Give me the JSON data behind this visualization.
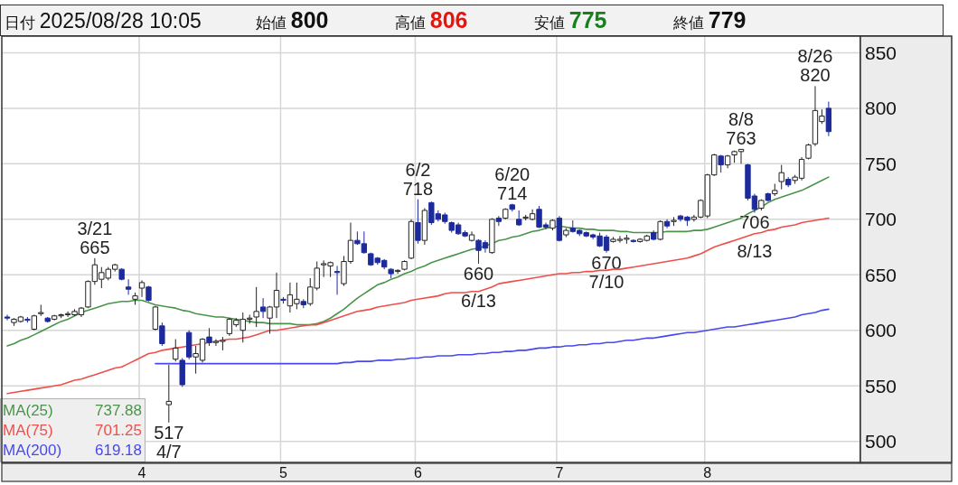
{
  "chart_data": {
    "type": "candlestick",
    "title": "日付 2025/08/28 10:05",
    "annotations": [
      "始値 800",
      "高値 806",
      "安値 775",
      "終値 779",
      {
        "text": "3/21\n665",
        "y": 665
      },
      {
        "text": "517\n4/7",
        "y": 517
      },
      {
        "text": "6/2\n718",
        "y": 718
      },
      {
        "text": "660\n6/13",
        "y": 660
      },
      {
        "text": "6/20\n714",
        "y": 714
      },
      {
        "text": "670\n7/10",
        "y": 670
      },
      {
        "text": "8/8\n763",
        "y": 763
      },
      {
        "text": "706\n8/13",
        "y": 706
      },
      {
        "text": "8/26\n820",
        "y": 820
      }
    ],
    "categories": [
      null,
      null,
      null,
      null,
      null,
      null,
      null,
      null,
      null,
      null,
      null,
      null,
      null,
      null,
      null,
      null,
      null,
      null,
      null,
      null,
      "4",
      null,
      null,
      null,
      null,
      null,
      null,
      null,
      null,
      null,
      null,
      null,
      null,
      null,
      null,
      null,
      null,
      null,
      null,
      null,
      null,
      "5",
      null,
      null,
      null,
      null,
      null,
      null,
      null,
      null,
      null,
      null,
      null,
      null,
      null,
      null,
      null,
      null,
      null,
      null,
      null,
      "6",
      null,
      null,
      null,
      null,
      null,
      null,
      null,
      null,
      null,
      null,
      null,
      null,
      null,
      null,
      null,
      null,
      null,
      null,
      null,
      null,
      "7",
      null,
      null,
      null,
      null,
      null,
      null,
      null,
      null,
      null,
      null,
      null,
      null,
      null,
      null,
      null,
      null,
      null,
      null,
      null,
      null,
      null,
      "8",
      null,
      null,
      null,
      null,
      null,
      null,
      null,
      null,
      null,
      null,
      null,
      null,
      null,
      null,
      null,
      null,
      null,
      null
    ],
    "ohlc": [
      [
        612,
        614,
        609,
        611
      ],
      [
        607,
        611,
        604,
        610
      ],
      [
        608,
        613,
        607,
        612
      ],
      [
        610,
        612,
        607,
        609
      ],
      [
        601,
        614,
        600,
        613
      ],
      [
        615,
        623,
        613,
        616
      ],
      [
        611,
        612,
        607,
        608
      ],
      [
        610,
        614,
        609,
        613
      ],
      [
        613,
        615,
        611,
        614
      ],
      [
        614,
        617,
        612,
        615
      ],
      [
        614,
        619,
        613,
        617
      ],
      [
        614,
        621,
        612,
        620
      ],
      [
        621,
        645,
        620,
        644
      ],
      [
        644,
        665,
        641,
        659
      ],
      [
        646,
        657,
        638,
        652
      ],
      [
        647,
        657,
        645,
        655
      ],
      [
        655,
        660,
        653,
        659
      ],
      [
        655,
        656,
        645,
        646
      ],
      [
        639,
        646,
        632,
        637
      ],
      [
        628,
        634,
        623,
        631
      ],
      [
        638,
        645,
        630,
        643
      ],
      [
        639,
        640,
        626,
        627
      ],
      [
        601,
        622,
        600,
        621
      ],
      [
        604,
        607,
        586,
        588
      ],
      [
        533,
        569,
        517,
        536
      ],
      [
        574,
        592,
        572,
        584
      ],
      [
        573,
        575,
        549,
        551
      ],
      [
        598,
        600,
        574,
        576
      ],
      [
        576,
        586,
        561,
        579
      ],
      [
        573,
        593,
        571,
        592
      ],
      [
        594,
        602,
        586,
        589
      ],
      [
        589,
        592,
        586,
        590
      ],
      [
        590,
        594,
        582,
        591
      ],
      [
        597,
        611,
        595,
        610
      ],
      [
        605,
        611,
        603,
        609
      ],
      [
        600,
        616,
        589,
        610
      ],
      [
        610,
        614,
        606,
        611
      ],
      [
        612,
        639,
        603,
        617
      ],
      [
        621,
        629,
        611,
        617
      ],
      [
        611,
        622,
        597,
        621
      ],
      [
        621,
        652,
        611,
        636
      ],
      [
        628,
        630,
        624,
        627
      ],
      [
        622,
        643,
        616,
        632
      ],
      [
        624,
        643,
        619,
        628
      ],
      [
        626,
        628,
        620,
        623
      ],
      [
        624,
        647,
        622,
        639
      ],
      [
        638,
        662,
        636,
        656
      ],
      [
        659,
        663,
        648,
        660
      ],
      [
        658,
        662,
        648,
        661
      ],
      [
        653,
        658,
        632,
        652
      ],
      [
        642,
        667,
        640,
        662
      ],
      [
        662,
        697,
        660,
        681
      ],
      [
        681,
        689,
        677,
        678
      ],
      [
        678,
        689,
        669,
        670
      ],
      [
        669,
        670,
        658,
        659
      ],
      [
        665,
        666,
        659,
        661
      ],
      [
        663,
        664,
        655,
        657
      ],
      [
        655,
        656,
        647,
        651
      ],
      [
        653,
        655,
        651,
        654
      ],
      [
        655,
        663,
        654,
        662
      ],
      [
        665,
        700,
        664,
        698
      ],
      [
        697,
        718,
        678,
        681
      ],
      [
        681,
        710,
        677,
        708
      ],
      [
        715,
        716,
        695,
        697
      ],
      [
        705,
        708,
        698,
        700
      ],
      [
        704,
        706,
        696,
        698
      ],
      [
        697,
        698,
        688,
        690
      ],
      [
        695,
        697,
        686,
        687
      ],
      [
        688,
        690,
        684,
        685
      ],
      [
        681,
        689,
        680,
        686
      ],
      [
        681,
        682,
        660,
        672
      ],
      [
        679,
        681,
        670,
        674
      ],
      [
        670,
        701,
        669,
        700
      ],
      [
        701,
        703,
        694,
        698
      ],
      [
        701,
        710,
        700,
        709
      ],
      [
        713,
        714,
        707,
        709
      ],
      [
        700,
        708,
        694,
        695
      ],
      [
        701,
        704,
        699,
        702
      ],
      [
        700,
        709,
        699,
        705
      ],
      [
        709,
        712,
        692,
        693
      ],
      [
        695,
        697,
        691,
        693
      ],
      [
        692,
        700,
        690,
        699
      ],
      [
        701,
        703,
        680,
        681
      ],
      [
        686,
        692,
        684,
        690
      ],
      [
        692,
        699,
        688,
        689
      ],
      [
        690,
        691,
        685,
        687
      ],
      [
        688,
        689,
        684,
        685
      ],
      [
        686,
        687,
        682,
        684
      ],
      [
        685,
        688,
        675,
        676
      ],
      [
        684,
        686,
        670,
        672
      ],
      [
        680,
        684,
        679,
        682
      ],
      [
        681,
        685,
        679,
        682
      ],
      [
        682,
        686,
        678,
        683
      ],
      [
        681,
        682,
        679,
        680
      ],
      [
        680,
        683,
        679,
        682
      ],
      [
        681,
        686,
        680,
        685
      ],
      [
        688,
        690,
        681,
        682
      ],
      [
        682,
        699,
        681,
        698
      ],
      [
        698,
        700,
        692,
        694
      ],
      [
        698,
        702,
        694,
        699
      ],
      [
        703,
        704,
        698,
        700
      ],
      [
        702,
        703,
        694,
        699
      ],
      [
        700,
        704,
        698,
        702
      ],
      [
        702,
        718,
        701,
        717
      ],
      [
        703,
        741,
        701,
        740
      ],
      [
        740,
        759,
        739,
        758
      ],
      [
        757,
        758,
        742,
        749
      ],
      [
        749,
        758,
        746,
        757
      ],
      [
        758,
        762,
        751,
        761
      ],
      [
        761,
        763,
        750,
        763
      ],
      [
        749,
        750,
        717,
        719
      ],
      [
        721,
        723,
        706,
        709
      ],
      [
        710,
        718,
        708,
        717
      ],
      [
        723,
        724,
        716,
        717
      ],
      [
        723,
        732,
        721,
        726
      ],
      [
        734,
        749,
        727,
        742
      ],
      [
        736,
        738,
        729,
        731
      ],
      [
        735,
        740,
        732,
        738
      ],
      [
        737,
        756,
        735,
        754
      ],
      [
        755,
        768,
        754,
        767
      ],
      [
        768,
        820,
        766,
        798
      ],
      [
        788,
        799,
        786,
        793
      ],
      [
        800,
        806,
        775,
        779
      ]
    ],
    "colors": [
      "#1c2a9c",
      "#ffffff",
      "#ffffff",
      "#1c2a9c",
      "#ffffff",
      "#ffffff",
      "#1c2a9c",
      "#ffffff",
      "#ffffff",
      "#ffffff",
      "#ffffff",
      "#ffffff",
      "#ffffff",
      "#ffffff",
      "#ffffff",
      "#ffffff",
      "#ffffff",
      "#1c2a9c",
      "#1c2a9c",
      "#ffffff",
      "#ffffff",
      "#1c2a9c",
      "#ffffff",
      "#1c2a9c",
      "#ffffff",
      "#ffffff",
      "#1c2a9c",
      "#1c2a9c",
      "#ffffff",
      "#ffffff",
      "#1c2a9c",
      "#ffffff",
      "#ffffff",
      "#ffffff",
      "#ffffff",
      "#ffffff",
      "#ffffff",
      "#ffffff",
      "#1c2a9c",
      "#ffffff",
      "#ffffff",
      "#1c2a9c",
      "#ffffff",
      "#ffffff",
      "#1c2a9c",
      "#ffffff",
      "#ffffff",
      "#ffffff",
      "#ffffff",
      "#1c2a9c",
      "#ffffff",
      "#ffffff",
      "#1c2a9c",
      "#1c2a9c",
      "#1c2a9c",
      "#1c2a9c",
      "#1c2a9c",
      "#1c2a9c",
      "#ffffff",
      "#ffffff",
      "#ffffff",
      "#1c2a9c",
      "#ffffff",
      "#1c2a9c",
      "#1c2a9c",
      "#1c2a9c",
      "#1c2a9c",
      "#1c2a9c",
      "#1c2a9c",
      "#ffffff",
      "#1c2a9c",
      "#1c2a9c",
      "#ffffff",
      "#1c2a9c",
      "#ffffff",
      "#1c2a9c",
      "#1c2a9c",
      "#ffffff",
      "#ffffff",
      "#1c2a9c",
      "#1c2a9c",
      "#ffffff",
      "#1c2a9c",
      "#ffffff",
      "#1c2a9c",
      "#1c2a9c",
      "#1c2a9c",
      "#1c2a9c",
      "#1c2a9c",
      "#1c2a9c",
      "#ffffff",
      "#ffffff",
      "#ffffff",
      "#1c2a9c",
      "#ffffff",
      "#ffffff",
      "#1c2a9c",
      "#ffffff",
      "#1c2a9c",
      "#ffffff",
      "#1c2a9c",
      "#1c2a9c",
      "#ffffff",
      "#ffffff",
      "#ffffff",
      "#ffffff",
      "#1c2a9c",
      "#ffffff",
      "#ffffff",
      "#ffffff",
      "#1c2a9c",
      "#1c2a9c",
      "#ffffff",
      "#1c2a9c",
      "#ffffff",
      "#ffffff",
      "#1c2a9c",
      "#ffffff",
      "#ffffff",
      "#ffffff",
      "#ffffff",
      "#ffffff",
      "#1c2a9c"
    ],
    "series": [
      {
        "name": "MA(25) 737.88",
        "type": "line",
        "color": "#4a944a",
        "values": [
          586,
          588,
          591,
          593,
          596,
          599,
          602,
          605,
          608,
          610,
          613,
          616,
          618,
          620,
          622,
          624,
          625,
          626,
          626,
          627,
          627,
          625,
          623,
          622,
          621,
          620,
          618,
          617,
          615,
          614,
          613,
          612,
          612,
          611,
          610,
          609,
          608,
          607,
          607,
          606,
          606,
          606,
          606,
          605,
          605,
          605,
          606,
          608,
          611,
          615,
          619,
          624,
          629,
          633,
          637,
          641,
          643,
          646,
          648,
          651,
          653,
          656,
          658,
          661,
          663,
          665,
          667,
          669,
          671,
          673,
          674,
          676,
          678,
          681,
          682,
          684,
          685,
          687,
          689,
          690,
          692,
          693,
          694,
          693,
          692,
          692,
          691,
          691,
          690,
          690,
          690,
          689,
          689,
          688,
          688,
          688,
          688,
          688,
          689,
          689,
          689,
          689,
          690,
          690,
          691,
          693,
          695,
          697,
          699,
          701,
          705,
          708,
          711,
          715,
          718,
          720,
          722,
          724,
          726,
          729,
          732,
          735,
          738
        ]
      },
      {
        "name": "MA(75) 701.25",
        "type": "line",
        "color": "#ee4f4a",
        "values": [
          543,
          544,
          545,
          546,
          547,
          548,
          549,
          550,
          551,
          553,
          555,
          556,
          558,
          560,
          562,
          564,
          566,
          567,
          570,
          573,
          576,
          579,
          580,
          582,
          583,
          584,
          585,
          586,
          587,
          588,
          589,
          590,
          591,
          592,
          592,
          593,
          594,
          596,
          598,
          600,
          600,
          601,
          602,
          603,
          604,
          605,
          605,
          607,
          609,
          611,
          613,
          615,
          617,
          618,
          619,
          621,
          622,
          623,
          624,
          625,
          627,
          628,
          629,
          630,
          631,
          633,
          634,
          634,
          634,
          635,
          635,
          637,
          639,
          642,
          643,
          644,
          645,
          646,
          647,
          648,
          649,
          650,
          651,
          651,
          652,
          652,
          653,
          653,
          654,
          654,
          655,
          655,
          656,
          657,
          658,
          659,
          660,
          661,
          662,
          663,
          664,
          665,
          667,
          669,
          672,
          675,
          677,
          679,
          681,
          683,
          685,
          687,
          688,
          690,
          691,
          693,
          694,
          695,
          697,
          698,
          699,
          700,
          701
        ]
      },
      {
        "name": "MA(200) 619.18",
        "type": "line",
        "color": "#4848ee",
        "values": [
          null,
          null,
          null,
          null,
          null,
          null,
          null,
          null,
          null,
          null,
          null,
          null,
          null,
          null,
          null,
          null,
          null,
          null,
          null,
          null,
          null,
          null,
          570,
          570,
          570,
          570,
          570,
          570,
          570,
          570,
          570,
          570,
          570,
          570,
          570,
          570,
          570,
          570,
          570,
          570,
          570,
          570,
          570,
          570,
          570,
          570,
          570,
          570,
          570,
          570,
          571,
          571,
          572,
          572,
          572,
          573,
          573,
          573,
          574,
          574,
          575,
          575,
          576,
          576,
          577,
          577,
          577,
          578,
          578,
          578,
          579,
          579,
          580,
          580,
          581,
          581,
          582,
          582,
          583,
          584,
          584,
          585,
          585,
          586,
          586,
          587,
          587,
          588,
          588,
          589,
          589,
          590,
          591,
          591,
          592,
          593,
          593,
          594,
          595,
          596,
          597,
          598,
          598,
          599,
          600,
          601,
          602,
          603,
          603,
          604,
          605,
          606,
          607,
          608,
          609,
          610,
          611,
          612,
          614,
          615,
          616,
          618,
          619
        ]
      }
    ],
    "ylim": [
      481,
      865
    ],
    "yticks": [
      500,
      550,
      600,
      650,
      700,
      750,
      800,
      850
    ],
    "grid": true
  }
}
